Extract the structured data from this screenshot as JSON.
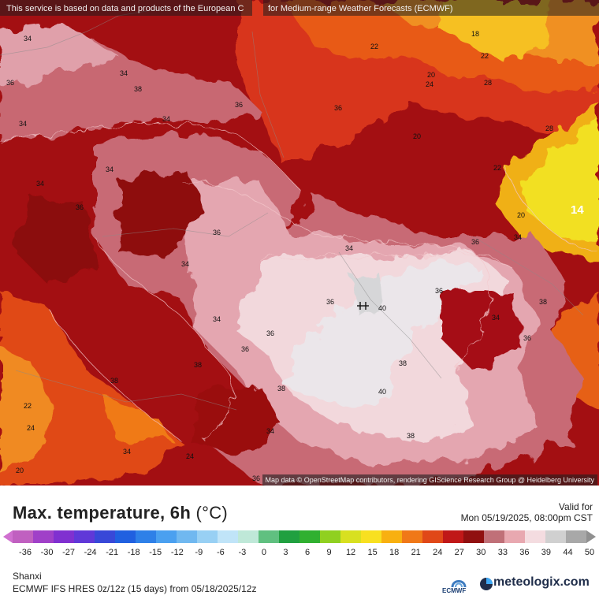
{
  "disclaimer": {
    "part1": "This service is based on data and products of the European C",
    "part2": "for Medium-range Weather Forecasts (ECMWF)"
  },
  "attribution": "Map data © OpenStreetMap contributors, rendering GIScience Research Group @ Heidelberg University",
  "title": {
    "main": "Max. temperature, 6h",
    "unit": "(°C)"
  },
  "valid": {
    "label": "Valid for",
    "datetime": "Mon 05/19/2025, 08:00pm CST"
  },
  "legend": {
    "ticks": [
      "-36",
      "-30",
      "-27",
      "-24",
      "-21",
      "-18",
      "-15",
      "-12",
      "-9",
      "-6",
      "-3",
      "0",
      "3",
      "6",
      "9",
      "12",
      "15",
      "18",
      "21",
      "24",
      "27",
      "30",
      "33",
      "36",
      "39",
      "44",
      "50"
    ],
    "colors": [
      "#c060c0",
      "#a040c8",
      "#8030d0",
      "#6038d8",
      "#3848d8",
      "#2060e0",
      "#2e80e8",
      "#4aa0f0",
      "#70b8f0",
      "#98d0f4",
      "#c0e4f8",
      "#bfe8d8",
      "#60c080",
      "#20a040",
      "#30b030",
      "#90d020",
      "#d8e020",
      "#f8e020",
      "#f8b010",
      "#f07818",
      "#e04818",
      "#c01818",
      "#901010",
      "#c07078",
      "#e8a8b0",
      "#f4dce0",
      "#d0d0d0",
      "#a8a8a8"
    ],
    "arrow_left_color": "#d070d0",
    "arrow_right_color": "#909090"
  },
  "footer": {
    "region": "Shanxi",
    "model": "ECMWF IFS HRES 0z/12z (15 days) from 05/18/2025/12z",
    "ecmwf_logo_text": "ECMWF",
    "brand": "meteologix.com"
  },
  "map": {
    "colors": {
      "deep_red": "#8b0a0a",
      "red": "#a80f10",
      "bright_red": "#c8201a",
      "orange_red": "#e0401a",
      "orange": "#f07a18",
      "yellow": "#f0e020",
      "pink": "#c8707a",
      "light_pink": "#e6aab4",
      "pale": "#f2dde0",
      "white_core": "#e8e6ea"
    },
    "labels": [
      "34",
      "36",
      "38",
      "34",
      "36",
      "34",
      "34",
      "36",
      "34",
      "34",
      "36",
      "34",
      "38",
      "36",
      "34",
      "36",
      "38",
      "36",
      "34",
      "40",
      "36",
      "38",
      "40",
      "38",
      "36",
      "38",
      "34",
      "36",
      "34",
      "22",
      "24",
      "20",
      "24",
      "34",
      "36",
      "34",
      "22",
      "18",
      "22",
      "24",
      "20",
      "28",
      "28",
      "20",
      "22",
      "14",
      "20",
      "36",
      "38"
    ],
    "city_marker": "city-marker"
  }
}
